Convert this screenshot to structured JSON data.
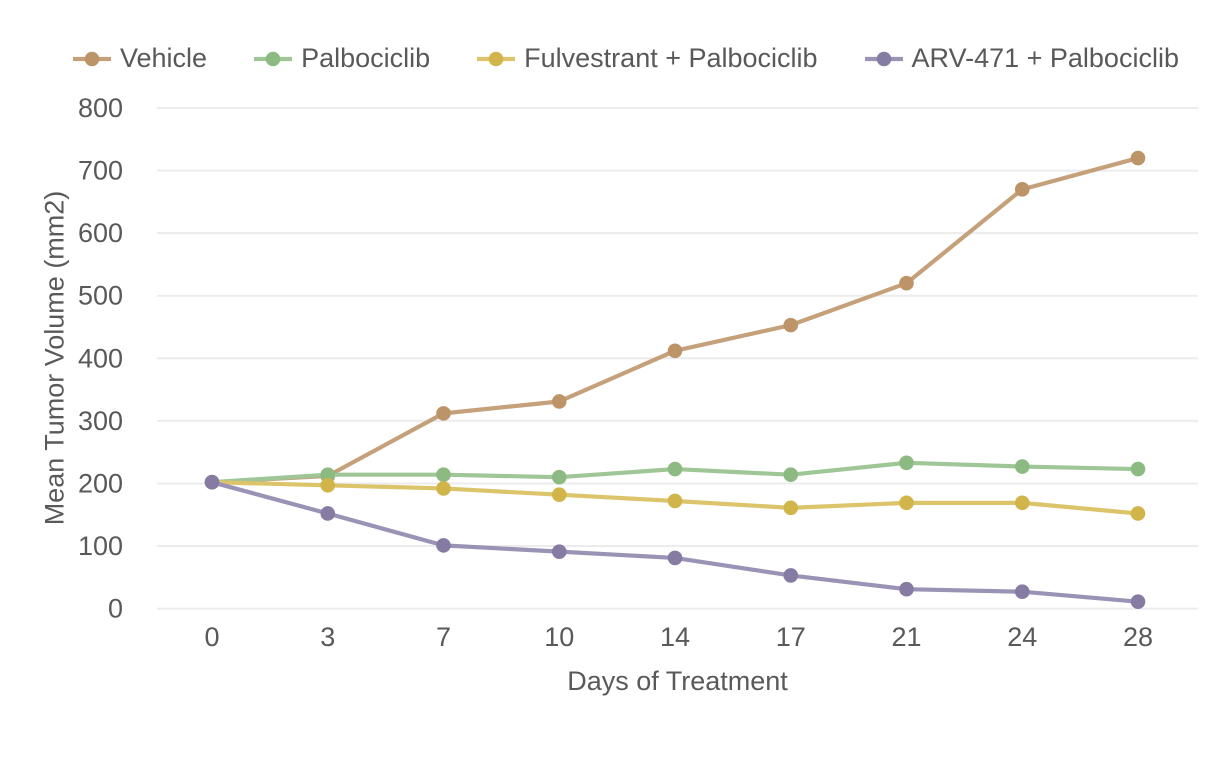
{
  "styles": {
    "background": "#ffffff",
    "text_color": "#595959",
    "grid_color": "#ececec"
  },
  "chart_data": {
    "type": "line",
    "title": "",
    "xlabel": "Days of Treatment",
    "ylabel": "Mean Tumor Volume (mm2)",
    "x": [
      0,
      3,
      7,
      10,
      14,
      17,
      21,
      24,
      28
    ],
    "ylim": [
      0,
      800
    ],
    "ytick_step": 100,
    "grid": "horizontal-only",
    "legend_position": "top-left",
    "series": [
      {
        "name": "Vehicle",
        "line_color": "#c5a17b",
        "marker_color": "#bd9468",
        "values": [
          202,
          212,
          312,
          331,
          412,
          453,
          520,
          670,
          720
        ]
      },
      {
        "name": "Palbociclib",
        "line_color": "#9fc696",
        "marker_color": "#8cba82",
        "values": [
          202,
          214,
          214,
          210,
          223,
          214,
          233,
          227,
          223
        ]
      },
      {
        "name": "Fulvestrant + Palbociclib",
        "line_color": "#dcc46a",
        "marker_color": "#d2b54a",
        "values": [
          202,
          197,
          192,
          182,
          172,
          161,
          169,
          169,
          152
        ]
      },
      {
        "name": "ARV-471 + Palbociclib",
        "line_color": "#9b93b5",
        "marker_color": "#867ba3",
        "values": [
          202,
          152,
          101,
          91,
          81,
          53,
          31,
          27,
          11
        ]
      }
    ]
  }
}
